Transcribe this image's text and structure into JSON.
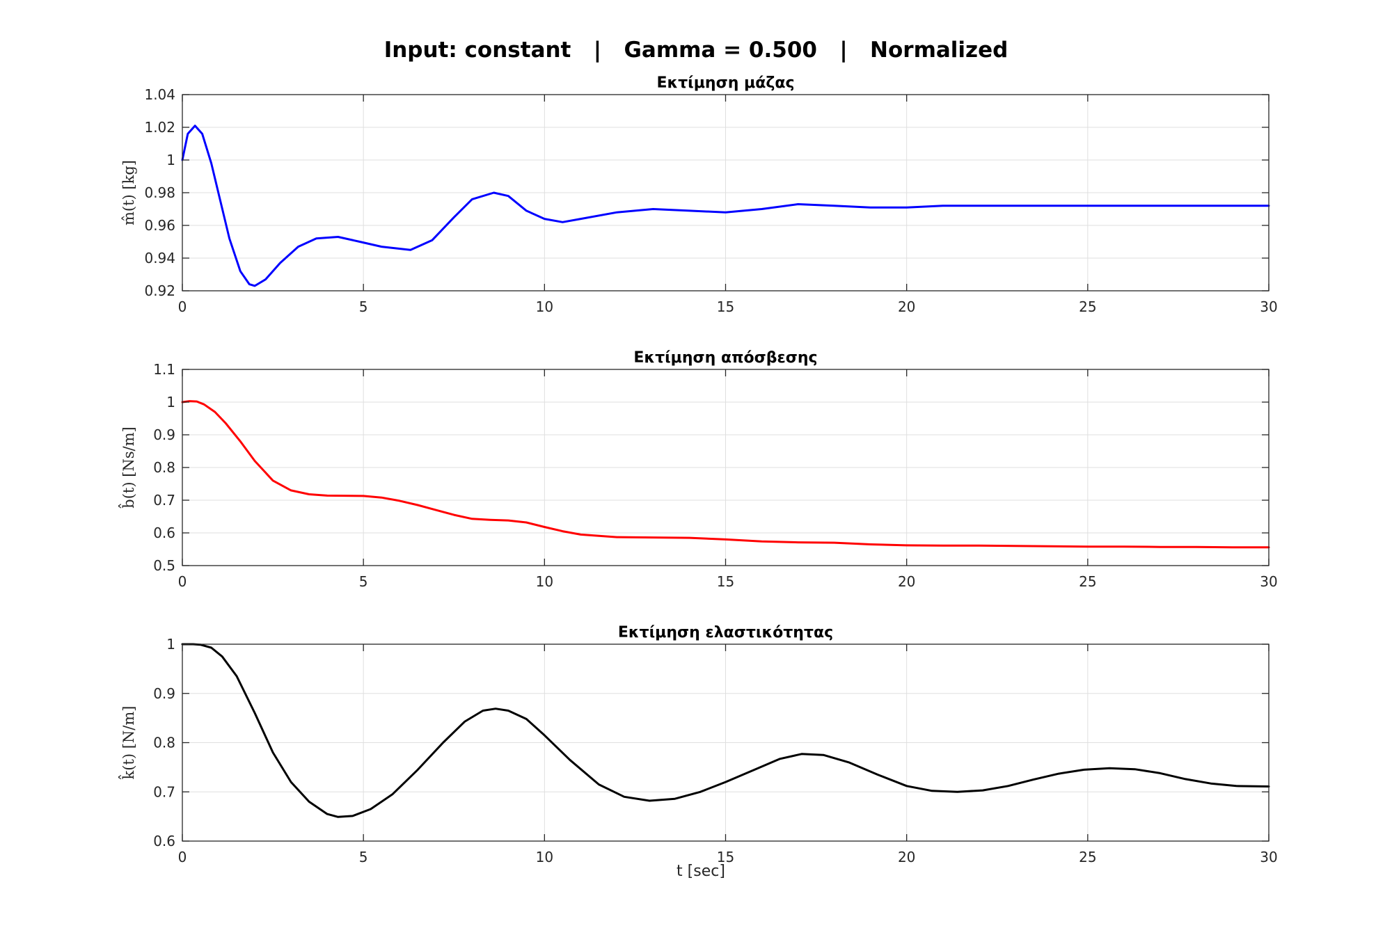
{
  "figure": {
    "title": "Input: constant   |   Gamma = 0.500   |   Normalized",
    "xlabel": "t [sec]"
  },
  "chart_data": [
    {
      "type": "line",
      "title": "Εκτίμηση μάζας",
      "ylabel": "m̂(t)  [kg]",
      "xlim": [
        0,
        30
      ],
      "ylim": [
        0.92,
        1.04
      ],
      "xticks": [
        0,
        5,
        10,
        15,
        20,
        25,
        30
      ],
      "yticks": [
        0.92,
        0.94,
        0.96,
        0.98,
        1.0,
        1.02,
        1.04
      ],
      "ytick_labels": [
        "0.92",
        "0.94",
        "0.96",
        "0.98",
        "1",
        "1.02",
        "1.04"
      ],
      "grid": true,
      "series": [
        {
          "color": "#0000ff",
          "x": [
            0,
            0.15,
            0.35,
            0.55,
            0.8,
            1.05,
            1.3,
            1.6,
            1.85,
            2.0,
            2.3,
            2.7,
            3.2,
            3.7,
            4.3,
            4.9,
            5.5,
            6.3,
            6.9,
            7.5,
            8.0,
            8.6,
            9.0,
            9.5,
            10.0,
            10.5,
            11.0,
            12.0,
            13.0,
            14.0,
            15.0,
            16.0,
            17.0,
            18.0,
            19.0,
            20.0,
            21.0,
            22.0,
            23.0,
            24.0,
            25.0,
            26.0,
            27.0,
            28.0,
            29.0,
            30.0
          ],
          "y": [
            1.0,
            1.016,
            1.021,
            1.016,
            0.998,
            0.975,
            0.952,
            0.932,
            0.924,
            0.923,
            0.927,
            0.937,
            0.947,
            0.952,
            0.953,
            0.95,
            0.947,
            0.945,
            0.951,
            0.965,
            0.976,
            0.98,
            0.978,
            0.969,
            0.964,
            0.962,
            0.964,
            0.968,
            0.97,
            0.969,
            0.968,
            0.97,
            0.973,
            0.972,
            0.971,
            0.971,
            0.972,
            0.972,
            0.972,
            0.972,
            0.972,
            0.972,
            0.972,
            0.972,
            0.972,
            0.972
          ]
        }
      ]
    },
    {
      "type": "line",
      "title": "Εκτίμηση απόσβεσης",
      "ylabel": "b̂(t)  [Ns/m]",
      "xlim": [
        0,
        30
      ],
      "ylim": [
        0.5,
        1.1
      ],
      "xticks": [
        0,
        5,
        10,
        15,
        20,
        25,
        30
      ],
      "yticks": [
        0.5,
        0.6,
        0.7,
        0.8,
        0.9,
        1.0,
        1.1
      ],
      "ytick_labels": [
        "0.5",
        "0.6",
        "0.7",
        "0.8",
        "0.9",
        "1",
        "1.1"
      ],
      "grid": true,
      "series": [
        {
          "color": "#ff0000",
          "x": [
            0,
            0.2,
            0.4,
            0.6,
            0.9,
            1.2,
            1.6,
            2.0,
            2.5,
            3.0,
            3.5,
            4.0,
            5.0,
            5.5,
            6.0,
            6.5,
            7.0,
            7.5,
            8.0,
            8.5,
            9.0,
            9.5,
            10.0,
            10.5,
            11.0,
            12.0,
            13.0,
            14.0,
            15.0,
            16.0,
            17.0,
            18.0,
            19.0,
            20.0,
            21.0,
            22.0,
            23.0,
            24.0,
            25.0,
            26.0,
            27.0,
            28.0,
            29.0,
            30.0
          ],
          "y": [
            1.0,
            1.003,
            1.002,
            0.993,
            0.97,
            0.935,
            0.88,
            0.82,
            0.76,
            0.73,
            0.718,
            0.714,
            0.713,
            0.708,
            0.698,
            0.685,
            0.67,
            0.655,
            0.643,
            0.64,
            0.638,
            0.632,
            0.618,
            0.605,
            0.595,
            0.587,
            0.586,
            0.585,
            0.58,
            0.574,
            0.571,
            0.57,
            0.565,
            0.562,
            0.561,
            0.561,
            0.56,
            0.559,
            0.558,
            0.558,
            0.557,
            0.557,
            0.556,
            0.556
          ]
        }
      ]
    },
    {
      "type": "line",
      "title": "Εκτίμηση ελαστικότητας",
      "ylabel": "k̂(t)  [N/m]",
      "xlim": [
        0,
        30
      ],
      "ylim": [
        0.6,
        1.0
      ],
      "xticks": [
        0,
        5,
        10,
        15,
        20,
        25,
        30
      ],
      "yticks": [
        0.6,
        0.7,
        0.8,
        0.9,
        1.0
      ],
      "ytick_labels": [
        "0.6",
        "0.7",
        "0.8",
        "0.9",
        "1"
      ],
      "grid": true,
      "series": [
        {
          "color": "#000000",
          "x": [
            0,
            0.3,
            0.5,
            0.8,
            1.1,
            1.5,
            2.0,
            2.5,
            3.0,
            3.5,
            4.0,
            4.3,
            4.7,
            5.2,
            5.8,
            6.5,
            7.2,
            7.8,
            8.3,
            8.65,
            9.0,
            9.5,
            10.0,
            10.7,
            11.5,
            12.2,
            12.9,
            13.6,
            14.3,
            15.0,
            15.8,
            16.5,
            17.1,
            17.7,
            18.4,
            19.2,
            20.0,
            20.7,
            21.4,
            22.1,
            22.8,
            23.5,
            24.2,
            24.9,
            25.6,
            26.3,
            27.0,
            27.7,
            28.4,
            29.1,
            30.0
          ],
          "y": [
            1.0,
            1.0,
            0.999,
            0.993,
            0.975,
            0.935,
            0.86,
            0.78,
            0.72,
            0.68,
            0.655,
            0.649,
            0.651,
            0.665,
            0.695,
            0.745,
            0.8,
            0.843,
            0.865,
            0.869,
            0.865,
            0.848,
            0.815,
            0.765,
            0.715,
            0.69,
            0.682,
            0.686,
            0.7,
            0.72,
            0.745,
            0.767,
            0.777,
            0.775,
            0.76,
            0.735,
            0.712,
            0.702,
            0.7,
            0.703,
            0.712,
            0.725,
            0.737,
            0.745,
            0.748,
            0.746,
            0.738,
            0.726,
            0.717,
            0.712,
            0.711
          ]
        }
      ]
    }
  ]
}
